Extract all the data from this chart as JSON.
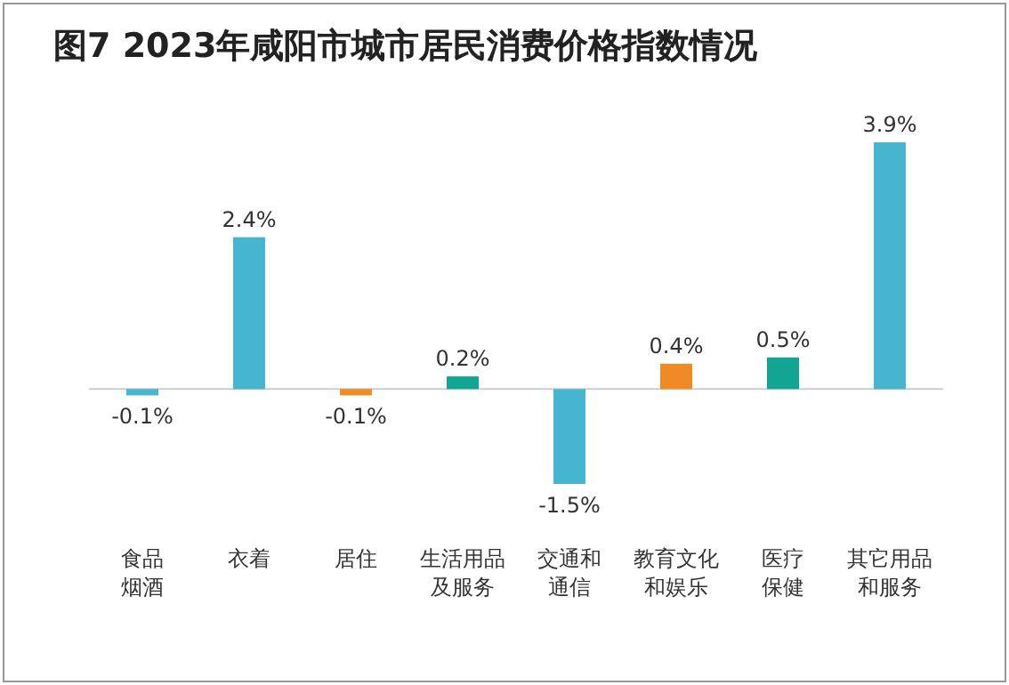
{
  "chart_data": {
    "type": "bar",
    "title": "图7 2023年咸阳市城市居民消费价格指数情况",
    "categories": [
      "食品烟酒",
      "衣着",
      "居住",
      "生活用品及服务",
      "交通和通信",
      "教育文化和娱乐",
      "医疗保健",
      "其它用品和服务"
    ],
    "values": [
      -0.1,
      2.4,
      -0.1,
      0.2,
      -1.5,
      0.4,
      0.5,
      3.9
    ],
    "colors": [
      "#45b5d0",
      "#45b5d0",
      "#f08a24",
      "#12a594",
      "#45b5d0",
      "#f08a24",
      "#12a594",
      "#45b5d0"
    ],
    "value_labels": [
      "-0.1%",
      "2.4%",
      "-0.1%",
      "0.2%",
      "-1.5%",
      "0.4%",
      "0.5%",
      "3.9%"
    ]
  }
}
